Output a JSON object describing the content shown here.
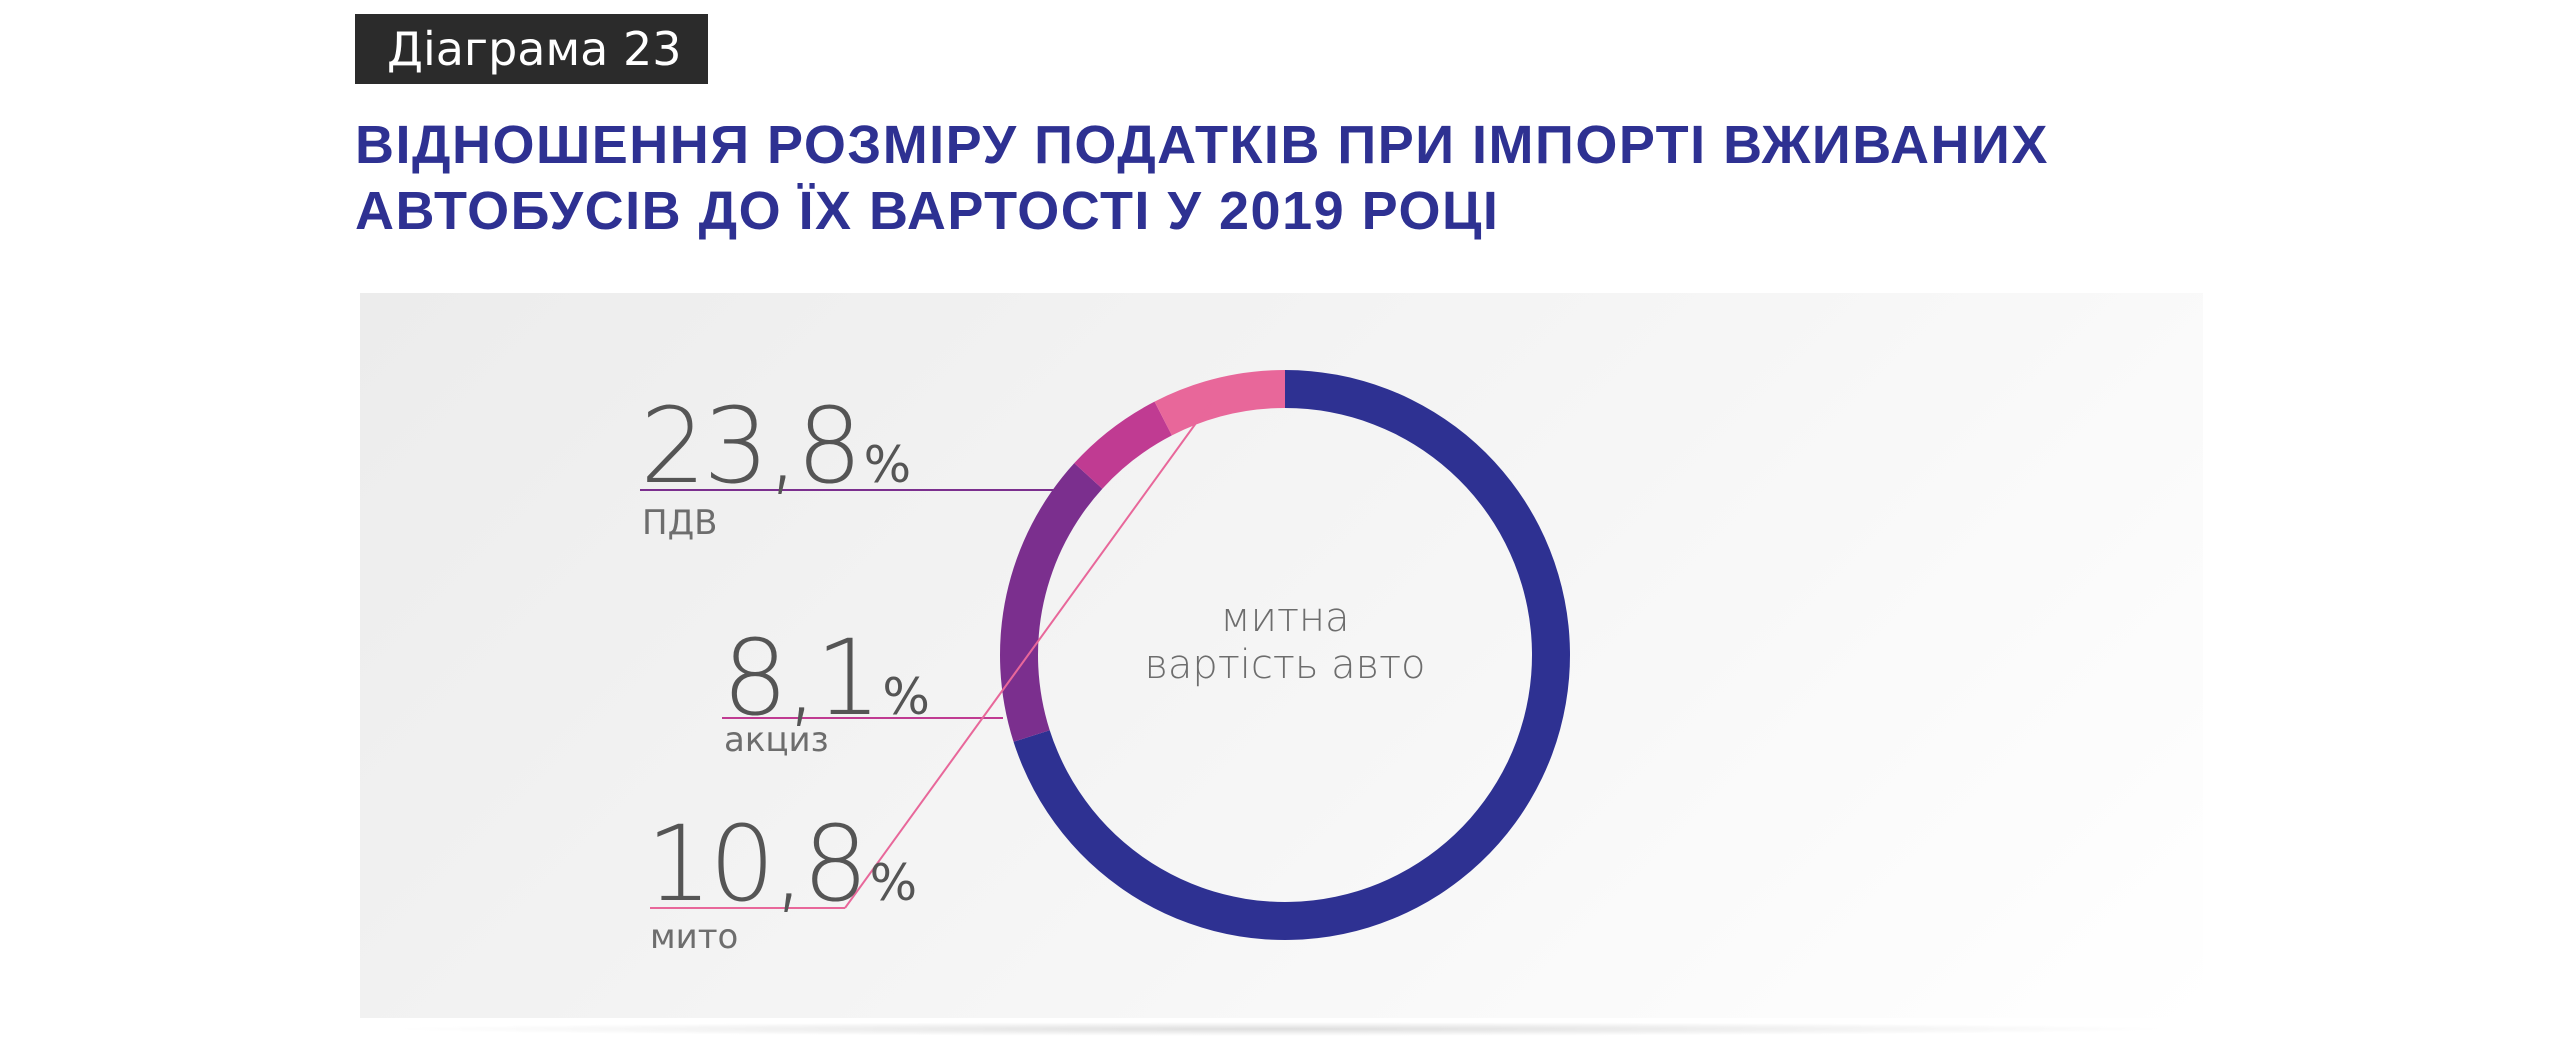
{
  "header": {
    "tag": "Діаграма 23",
    "title_line1": "ВІДНОШЕННЯ РОЗМІРУ ПОДАТКІВ ПРИ ІМПОРТІ ВЖИВАНИХ",
    "title_line2": "АВТОБУСІВ ДО ЇХ ВАРТОСТІ У 2019 РОЦІ"
  },
  "chart_data": {
    "type": "pie",
    "variant": "donut",
    "title": "ВІДНОШЕННЯ РОЗМІРУ ПОДАТКІВ ПРИ ІМПОРТІ ВЖИВАНИХ АВТОБУСІВ ДО ЇХ ВАРТОСТІ У 2019 РОЦІ",
    "center_label_line1": "митна",
    "center_label_line2": "вартість авто",
    "total_label_value": 100,
    "slices": [
      {
        "key": "base",
        "name": "митна вартість авто",
        "value": 100,
        "color": "#2e3192"
      },
      {
        "key": "pdv",
        "name": "ПДВ",
        "value": 23.8,
        "value_label": "23,8",
        "unit": "%",
        "color": "#7b2f8e"
      },
      {
        "key": "akciz",
        "name": "акциз",
        "value": 8.1,
        "value_label": "8,1",
        "unit": "%",
        "color": "#c03b92"
      },
      {
        "key": "myto",
        "name": "мито",
        "value": 10.8,
        "value_label": "10,8",
        "unit": "%",
        "color": "#e8679a"
      }
    ],
    "legend": "left of donut, with leader lines"
  }
}
